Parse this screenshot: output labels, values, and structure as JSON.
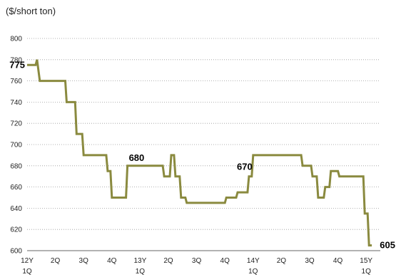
{
  "chart_data": {
    "type": "line",
    "unit_label": "($/short ton)",
    "ylim": [
      600,
      800
    ],
    "y_ticks": [
      600,
      620,
      640,
      660,
      680,
      700,
      720,
      740,
      760,
      780,
      800
    ],
    "x_ticks": [
      {
        "line1": "12Y",
        "line2": "1Q"
      },
      {
        "line1": "2Q",
        "line2": ""
      },
      {
        "line1": "3Q",
        "line2": ""
      },
      {
        "line1": "4Q",
        "line2": ""
      },
      {
        "line1": "13Y",
        "line2": "1Q"
      },
      {
        "line1": "2Q",
        "line2": ""
      },
      {
        "line1": "3Q",
        "line2": ""
      },
      {
        "line1": "4Q",
        "line2": ""
      },
      {
        "line1": "14Y",
        "line2": "1Q"
      },
      {
        "line1": "2Q",
        "line2": ""
      },
      {
        "line1": "3Q",
        "line2": ""
      },
      {
        "line1": "4Q",
        "line2": ""
      },
      {
        "line1": "15Y",
        "line2": "1Q"
      }
    ],
    "grid": true,
    "legend": "none",
    "line_color": "#8a8a3f",
    "series": [
      {
        "x": [
          0,
          0.3,
          0.35,
          0.45,
          0.5,
          1.35,
          1.4,
          1.7,
          1.75,
          1.95,
          2.0,
          2.2,
          2.25,
          2.8,
          2.85,
          2.95,
          3.0,
          3.5,
          3.55,
          4.8,
          4.85,
          5.05,
          5.1,
          5.2,
          5.25,
          5.4,
          5.45,
          5.6,
          5.65,
          5.9,
          5.95,
          7.0,
          7.05,
          7.4,
          7.45,
          7.8,
          7.85,
          7.95,
          8.0,
          8.2,
          8.25,
          9.7,
          9.75,
          10.05,
          10.1,
          10.25,
          10.3,
          10.5,
          10.55,
          10.7,
          10.75,
          11.0,
          11.05,
          11.3,
          11.35,
          11.9,
          11.95,
          12.05,
          12.1,
          12.2
        ],
        "y": [
          775,
          775,
          780,
          760,
          760,
          760,
          740,
          740,
          710,
          710,
          690,
          690,
          690,
          690,
          675,
          675,
          650,
          650,
          680,
          680,
          670,
          670,
          690,
          690,
          670,
          670,
          650,
          650,
          645,
          645,
          645,
          645,
          650,
          650,
          655,
          655,
          670,
          670,
          690,
          690,
          690,
          690,
          680,
          680,
          670,
          670,
          650,
          650,
          660,
          660,
          675,
          675,
          670,
          670,
          670,
          670,
          635,
          635,
          605,
          605
        ]
      }
    ],
    "data_labels": [
      {
        "text": "775",
        "x": 0,
        "y": 775
      },
      {
        "text": "680",
        "x": 3.55,
        "y": 680
      },
      {
        "text": "670",
        "x": 7.85,
        "y": 670
      },
      {
        "text": "605",
        "x": 12.2,
        "y": 605
      }
    ]
  }
}
